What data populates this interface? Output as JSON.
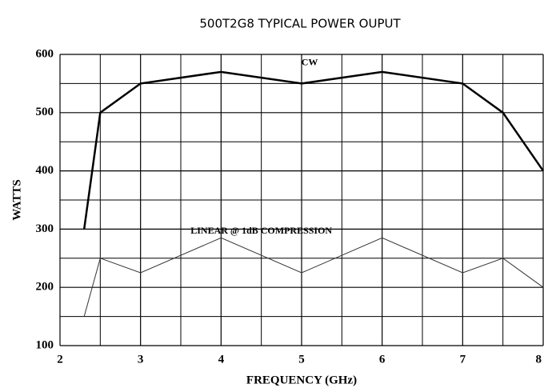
{
  "chart_data": {
    "type": "line",
    "title": "500T2G8 TYPICAL POWER OUPUT",
    "xlabel": "FREQUENCY (GHz)",
    "ylabel": "WATTS",
    "x": [
      2.3,
      2.5,
      3,
      4,
      5,
      6,
      7,
      7.5,
      8
    ],
    "series": [
      {
        "name": "CW",
        "color": "#000000",
        "values": [
          300,
          500,
          550,
          570,
          550,
          570,
          550,
          500,
          400
        ]
      },
      {
        "name": "LINEAR @ 1dB COMPRESSION",
        "color": "#333333",
        "values": [
          150,
          250,
          225,
          285,
          225,
          285,
          225,
          250,
          200
        ]
      }
    ],
    "xlim": [
      2,
      8
    ],
    "xticks": [
      2,
      3,
      4,
      5,
      6,
      7,
      8
    ],
    "xminorticks": [
      2.5,
      3.5,
      4.5,
      5.5,
      6.5,
      7.5
    ],
    "ylim": [
      100,
      600
    ],
    "yticks": [
      100,
      200,
      300,
      400,
      500,
      600
    ],
    "yminorticks": [
      150,
      250,
      350,
      450,
      550
    ],
    "grid": true
  }
}
